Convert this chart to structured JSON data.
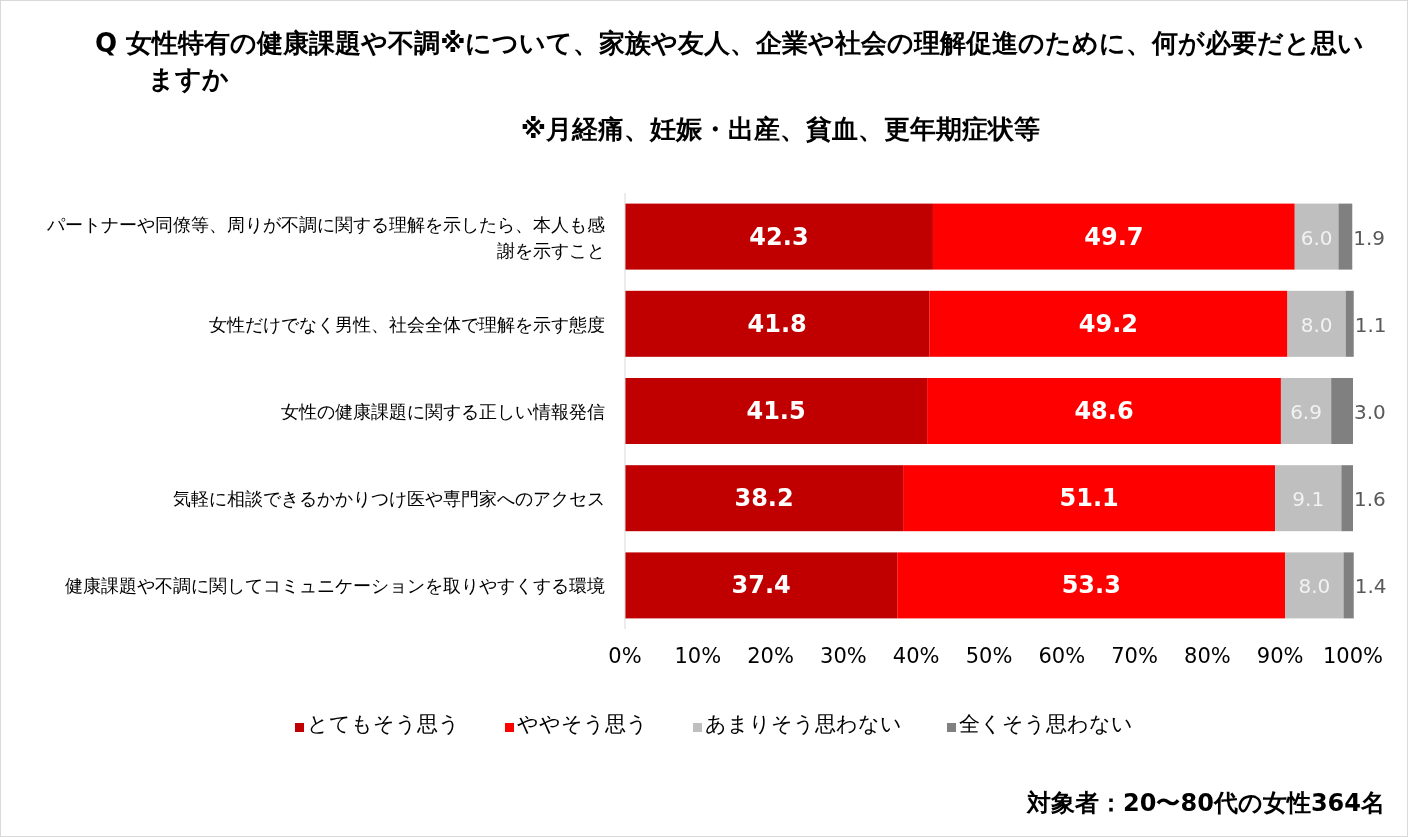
{
  "chart_data": {
    "type": "bar",
    "orientation": "horizontal",
    "stacked": true,
    "title": "Q 女性特有の健康課題や不調※について、家族や友人、企業や社会の理解促進のために、何が必要だと思いますか",
    "subtitle": "※月経痛、妊娠・出産、貧血、更年期症状等",
    "categories": [
      "パートナーや同僚等、周りが不調に関する理解を示したら、本人も感謝を示すこと",
      "女性だけでなく男性、社会全体で理解を示す態度",
      "女性の健康課題に関する正しい情報発信",
      "気軽に相談できるかかりつけ医や専門家へのアクセス",
      "健康課題や不調に関してコミュニケーションを取りやすくする環境"
    ],
    "series": [
      {
        "name": "とてもそう思う",
        "color": "#c00000",
        "values": [
          42.3,
          41.8,
          41.5,
          38.2,
          37.4
        ],
        "value_labels": [
          "42.3",
          "41.8",
          "41.5",
          "38.2",
          "37.4"
        ]
      },
      {
        "name": "ややそう思う",
        "color": "#ff0000",
        "values": [
          49.7,
          49.2,
          48.6,
          51.1,
          53.3
        ],
        "value_labels": [
          "49.7",
          "49.2",
          "48.6",
          "51.1",
          "53.3"
        ]
      },
      {
        "name": "あまりそう思わない",
        "color": "#bfbfbf",
        "values": [
          6.0,
          8.0,
          6.9,
          9.1,
          8.0
        ],
        "value_labels": [
          "6.0",
          "8.0",
          "6.9",
          "9.1",
          "8.0"
        ]
      },
      {
        "name": "全くそう思わない",
        "color": "#808080",
        "values": [
          1.9,
          1.1,
          3.0,
          1.6,
          1.4
        ],
        "value_labels": [
          "1.9",
          "1.1",
          "3.0",
          "1.6",
          "1.4"
        ]
      }
    ],
    "xlim": [
      0,
      100
    ],
    "xticks": [
      {
        "value": 0,
        "label": "0%"
      },
      {
        "value": 10,
        "label": "10%"
      },
      {
        "value": 20,
        "label": "20%"
      },
      {
        "value": 30,
        "label": "30%"
      },
      {
        "value": 40,
        "label": "40%"
      },
      {
        "value": 50,
        "label": "50%"
      },
      {
        "value": 60,
        "label": "60%"
      },
      {
        "value": 70,
        "label": "70%"
      },
      {
        "value": 80,
        "label": "80%"
      },
      {
        "value": 90,
        "label": "90%"
      },
      {
        "value": 100,
        "label": "100%"
      }
    ],
    "grid": false,
    "legend": "bottom",
    "annotations": [
      "対象者：20〜80代の女性364名"
    ]
  }
}
